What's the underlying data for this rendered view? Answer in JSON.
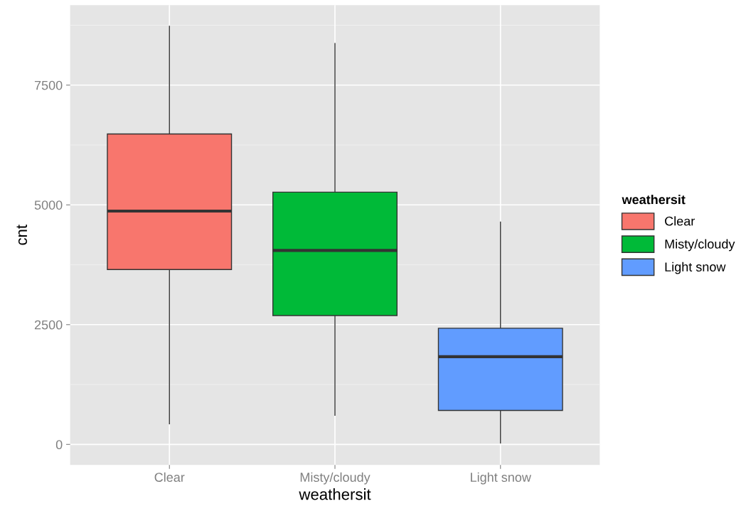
{
  "chart_data": {
    "type": "box",
    "xlabel": "weathersit",
    "ylabel": "cnt",
    "legend_title": "weathersit",
    "categories": [
      "Clear",
      "Misty/cloudy",
      "Light snow"
    ],
    "series": [
      {
        "name": "Clear",
        "color": "#f8766d",
        "boxes": [
          {
            "low": 430,
            "q1": 3650,
            "median": 4870,
            "q3": 6480,
            "high": 8730
          },
          null,
          null
        ]
      },
      {
        "name": "Misty/cloudy",
        "color": "#00ba38",
        "boxes": [
          null,
          {
            "low": 610,
            "q1": 2690,
            "median": 4050,
            "q3": 5265,
            "high": 8370
          },
          null
        ]
      },
      {
        "name": "Light snow",
        "color": "#619cff",
        "boxes": [
          null,
          null,
          {
            "low": 30,
            "q1": 710,
            "median": 1830,
            "q3": 2425,
            "high": 4640
          }
        ]
      }
    ],
    "ylim": [
      -430,
      9170
    ],
    "yticks": [
      0,
      2500,
      5000,
      7500
    ],
    "grid": true,
    "legend": "right"
  }
}
